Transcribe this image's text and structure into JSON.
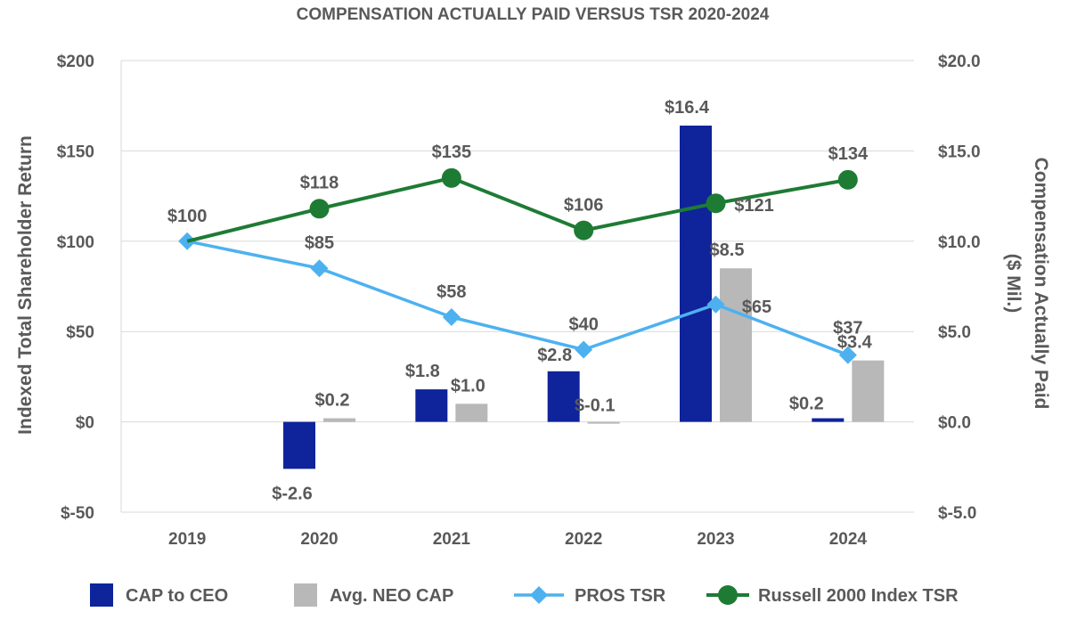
{
  "chart_data": {
    "type": "bar",
    "title": "COMPENSATION ACTUALLY PAID VERSUS TSR 2020-2024",
    "categories": [
      "2019",
      "2020",
      "2021",
      "2022",
      "2023",
      "2024"
    ],
    "ylabel": "Indexed Total Shareholder Return",
    "y2label_line1": "Compensation Actually Paid",
    "y2label_line2": "($ Mil.)",
    "ylim": [
      -50,
      200
    ],
    "y2lim": [
      -5.0,
      20.0
    ],
    "yticks": [
      "$-50",
      "$0",
      "$50",
      "$100",
      "$150",
      "$200"
    ],
    "y2ticks": [
      "$-5.0",
      "$0.0",
      "$5.0",
      "$10.0",
      "$15.0",
      "$20.0"
    ],
    "grid": true,
    "legend_position": "bottom",
    "series": [
      {
        "name": "CAP to CEO",
        "kind": "bar",
        "axis": "right",
        "color": "#0f239b",
        "values": [
          null,
          -2.6,
          1.8,
          2.8,
          16.4,
          0.2
        ],
        "labels": [
          "",
          "$-2.6",
          "$1.8",
          "$2.8",
          "$16.4",
          "$0.2"
        ]
      },
      {
        "name": "Avg. NEO CAP",
        "kind": "bar",
        "axis": "right",
        "color": "#b8b8b8",
        "values": [
          null,
          0.2,
          1.0,
          -0.1,
          8.5,
          3.4
        ],
        "labels": [
          "",
          "$0.2",
          "$1.0",
          "$-0.1",
          "$8.5",
          "$3.4"
        ]
      },
      {
        "name": "PROS TSR",
        "kind": "line",
        "marker": "diamond",
        "axis": "left",
        "color": "#4db1f0",
        "values": [
          100,
          85,
          58,
          40,
          65,
          37
        ],
        "labels": [
          "$100",
          "$85",
          "$58",
          "$40",
          "$65",
          "$37"
        ]
      },
      {
        "name": "Russell 2000 Index TSR",
        "kind": "line",
        "marker": "circle",
        "axis": "left",
        "color": "#1e7b34",
        "values": [
          100,
          118,
          135,
          106,
          121,
          134
        ],
        "labels": [
          "",
          "$118",
          "$135",
          "$106",
          "$121",
          "$134"
        ]
      }
    ]
  }
}
